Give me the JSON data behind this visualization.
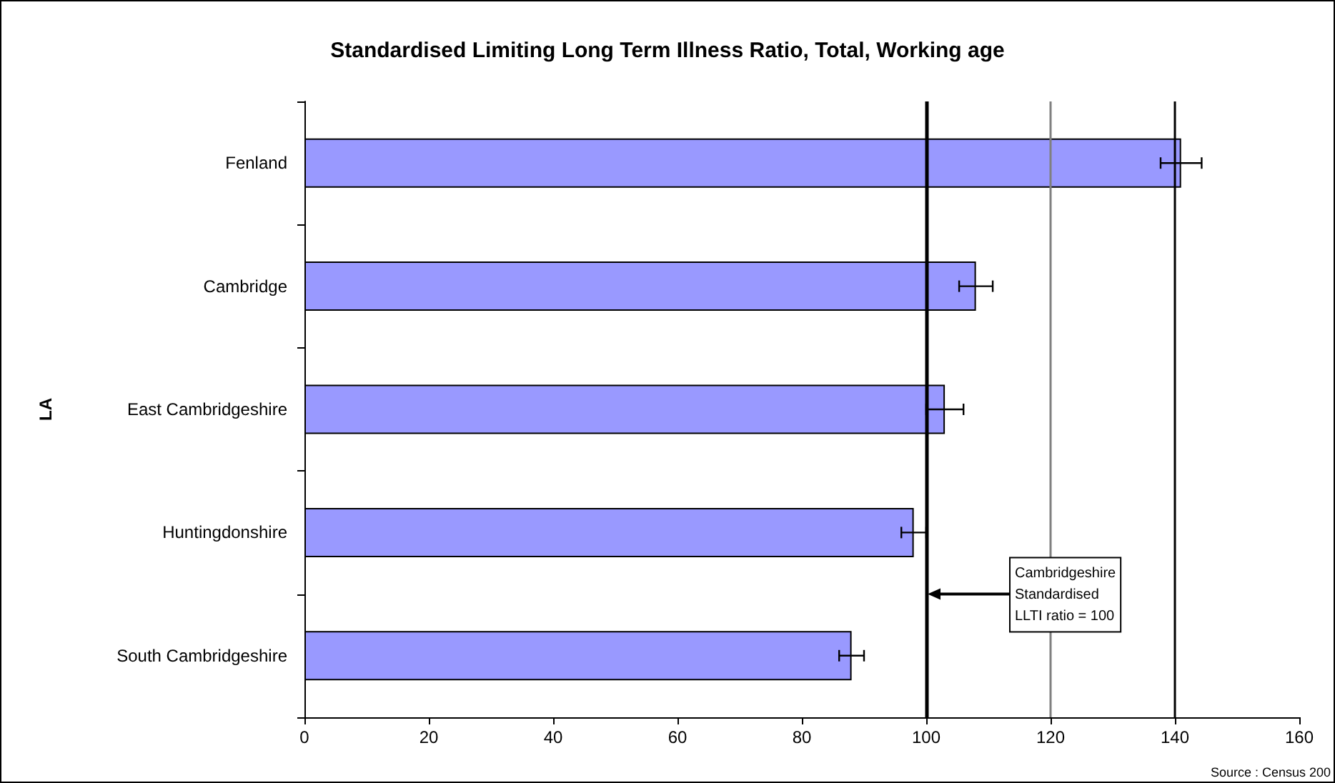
{
  "chart_data": {
    "type": "bar",
    "orientation": "horizontal",
    "title": "Standardised Limiting Long Term Illness Ratio, Total, Working age",
    "ylabel": "LA",
    "categories": [
      "Fenland",
      "Cambridge",
      "East Cambridgeshire",
      "Huntingdonshire",
      "South Cambridgeshire"
    ],
    "values": [
      141,
      108,
      103,
      98,
      88
    ],
    "errors": [
      3.3,
      2.7,
      3,
      2,
      2
    ],
    "color": "#9999ff",
    "xlim": [
      0,
      160
    ],
    "xticks": [
      0,
      20,
      40,
      60,
      80,
      100,
      120,
      140,
      160
    ],
    "grid": false,
    "ref_lines": [
      {
        "axis": "x",
        "value": 100,
        "label": "Cambridgeshire\nStandardised\nLLTI ratio = 100",
        "color": "#000000"
      },
      {
        "axis": "x",
        "value": 120,
        "color": "#808080"
      },
      {
        "axis": "x",
        "value": 140,
        "color": "#000000"
      }
    ],
    "annotations": [
      "Source : Census 200"
    ]
  }
}
